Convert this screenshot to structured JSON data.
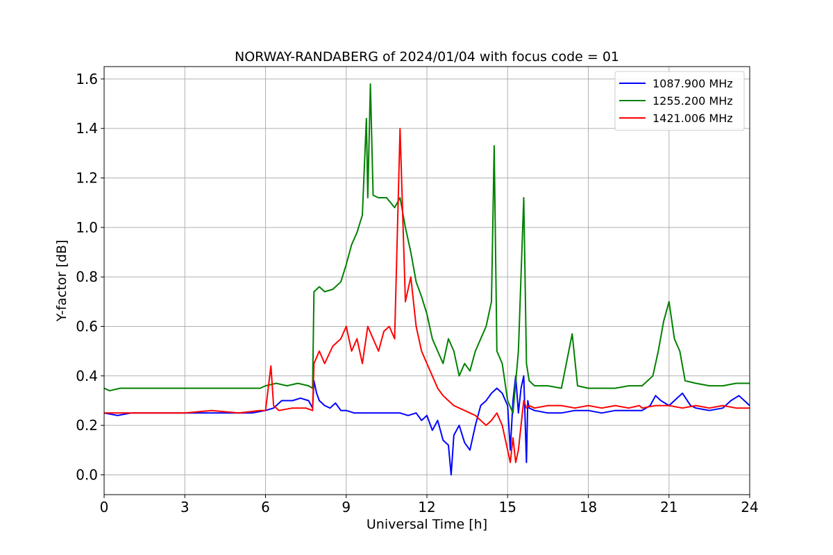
{
  "chart_data": {
    "type": "line",
    "title": "NORWAY-RANDABERG of 2024/01/04 with focus code = 01",
    "xlabel": "Universal Time [h]",
    "ylabel": "Y-factor [dB]",
    "xlim": [
      0,
      24
    ],
    "ylim": [
      -0.08,
      1.65
    ],
    "xticks": [
      0,
      3,
      6,
      9,
      12,
      15,
      18,
      21,
      24
    ],
    "yticks": [
      0.0,
      0.2,
      0.4,
      0.6,
      0.8,
      1.0,
      1.2,
      1.4,
      1.6
    ],
    "xtick_labels": [
      "0",
      "3",
      "6",
      "9",
      "12",
      "15",
      "18",
      "21",
      "24"
    ],
    "ytick_labels": [
      "0.0",
      "0.2",
      "0.4",
      "0.6",
      "0.8",
      "1.0",
      "1.2",
      "1.4",
      "1.6"
    ],
    "grid": true,
    "legend": "top-right",
    "series": [
      {
        "name": "1087.900 MHz",
        "color": "#0000ff",
        "x": [
          0,
          0.5,
          1,
          1.5,
          2,
          2.5,
          3,
          3.5,
          4,
          4.5,
          5,
          5.5,
          6,
          6.3,
          6.6,
          7,
          7.3,
          7.6,
          7.75,
          7.8,
          7.9,
          8,
          8.2,
          8.4,
          8.6,
          8.8,
          9,
          9.3,
          9.6,
          10,
          10.5,
          11,
          11.3,
          11.6,
          11.8,
          12,
          12.2,
          12.4,
          12.6,
          12.8,
          12.9,
          13,
          13.2,
          13.4,
          13.6,
          13.8,
          14,
          14.2,
          14.4,
          14.6,
          14.8,
          15,
          15.1,
          15.2,
          15.3,
          15.4,
          15.5,
          15.6,
          15.7,
          15.75,
          15.8,
          16,
          16.5,
          17,
          17.5,
          18,
          18.5,
          19,
          19.5,
          20,
          20.3,
          20.5,
          20.7,
          21,
          21.2,
          21.5,
          21.8,
          22,
          22.5,
          23,
          23.3,
          23.6,
          24
        ],
        "y": [
          0.25,
          0.24,
          0.25,
          0.25,
          0.25,
          0.25,
          0.25,
          0.25,
          0.25,
          0.25,
          0.25,
          0.25,
          0.26,
          0.27,
          0.3,
          0.3,
          0.31,
          0.3,
          0.27,
          0.38,
          0.33,
          0.3,
          0.28,
          0.27,
          0.29,
          0.26,
          0.26,
          0.25,
          0.25,
          0.25,
          0.25,
          0.25,
          0.24,
          0.25,
          0.22,
          0.24,
          0.18,
          0.22,
          0.14,
          0.12,
          0.0,
          0.16,
          0.2,
          0.13,
          0.1,
          0.2,
          0.28,
          0.3,
          0.33,
          0.35,
          0.33,
          0.28,
          0.1,
          0.3,
          0.4,
          0.25,
          0.35,
          0.4,
          0.05,
          0.3,
          0.27,
          0.26,
          0.25,
          0.25,
          0.26,
          0.26,
          0.25,
          0.26,
          0.26,
          0.26,
          0.28,
          0.32,
          0.3,
          0.28,
          0.3,
          0.33,
          0.28,
          0.27,
          0.26,
          0.27,
          0.3,
          0.32,
          0.28
        ]
      },
      {
        "name": "1255.200 MHz",
        "color": "#008000",
        "x": [
          0,
          0.2,
          0.6,
          1,
          2,
          3,
          4,
          5,
          5.8,
          6,
          6.4,
          6.8,
          7.2,
          7.6,
          7.75,
          7.8,
          8,
          8.2,
          8.5,
          8.8,
          9,
          9.2,
          9.4,
          9.6,
          9.75,
          9.8,
          9.9,
          10,
          10.2,
          10.5,
          10.8,
          11,
          11.2,
          11.4,
          11.6,
          11.8,
          12,
          12.2,
          12.4,
          12.6,
          12.8,
          13,
          13.2,
          13.4,
          13.6,
          13.8,
          14,
          14.2,
          14.4,
          14.5,
          14.6,
          14.8,
          15,
          15.2,
          15.4,
          15.6,
          15.7,
          15.8,
          16,
          16.5,
          17,
          17.4,
          17.6,
          18,
          18.5,
          19,
          19.5,
          20,
          20.4,
          20.6,
          20.8,
          21,
          21.2,
          21.4,
          21.6,
          22,
          22.5,
          23,
          23.5,
          24
        ],
        "y": [
          0.35,
          0.34,
          0.35,
          0.35,
          0.35,
          0.35,
          0.35,
          0.35,
          0.35,
          0.36,
          0.37,
          0.36,
          0.37,
          0.36,
          0.35,
          0.74,
          0.76,
          0.74,
          0.75,
          0.78,
          0.85,
          0.93,
          0.98,
          1.05,
          1.44,
          1.12,
          1.58,
          1.13,
          1.12,
          1.12,
          1.08,
          1.12,
          1.0,
          0.9,
          0.78,
          0.72,
          0.65,
          0.55,
          0.5,
          0.45,
          0.55,
          0.5,
          0.4,
          0.45,
          0.42,
          0.5,
          0.55,
          0.6,
          0.7,
          1.33,
          0.5,
          0.45,
          0.3,
          0.25,
          0.5,
          1.12,
          0.45,
          0.38,
          0.36,
          0.36,
          0.35,
          0.57,
          0.36,
          0.35,
          0.35,
          0.35,
          0.36,
          0.36,
          0.4,
          0.5,
          0.62,
          0.7,
          0.55,
          0.5,
          0.38,
          0.37,
          0.36,
          0.36,
          0.37,
          0.37
        ]
      },
      {
        "name": "1421.006 MHz",
        "color": "#ff0000",
        "x": [
          0,
          1,
          2,
          3,
          4,
          5,
          5.8,
          6,
          6.2,
          6.3,
          6.5,
          7,
          7.5,
          7.75,
          7.8,
          8,
          8.2,
          8.5,
          8.8,
          9,
          9.2,
          9.4,
          9.6,
          9.8,
          10,
          10.2,
          10.4,
          10.6,
          10.8,
          11,
          11.2,
          11.4,
          11.6,
          11.8,
          12,
          12.2,
          12.4,
          12.6,
          12.8,
          13,
          13.2,
          13.4,
          13.6,
          13.8,
          14,
          14.2,
          14.4,
          14.6,
          14.8,
          15,
          15.1,
          15.2,
          15.3,
          15.4,
          15.5,
          15.6,
          15.7,
          15.8,
          16,
          16.5,
          17,
          17.5,
          18,
          18.5,
          19,
          19.5,
          19.9,
          20,
          20.5,
          21,
          21.5,
          22,
          22.5,
          23,
          23.5,
          24
        ],
        "y": [
          0.25,
          0.25,
          0.25,
          0.25,
          0.26,
          0.25,
          0.26,
          0.26,
          0.44,
          0.28,
          0.26,
          0.27,
          0.27,
          0.26,
          0.45,
          0.5,
          0.45,
          0.52,
          0.55,
          0.6,
          0.5,
          0.55,
          0.45,
          0.6,
          0.55,
          0.5,
          0.58,
          0.6,
          0.55,
          1.4,
          0.7,
          0.8,
          0.6,
          0.5,
          0.45,
          0.4,
          0.35,
          0.32,
          0.3,
          0.28,
          0.27,
          0.26,
          0.25,
          0.24,
          0.22,
          0.2,
          0.22,
          0.25,
          0.2,
          0.1,
          0.05,
          0.15,
          0.05,
          0.1,
          0.2,
          0.3,
          0.27,
          0.28,
          0.27,
          0.28,
          0.28,
          0.27,
          0.28,
          0.27,
          0.28,
          0.27,
          0.28,
          0.27,
          0.28,
          0.28,
          0.27,
          0.28,
          0.27,
          0.28,
          0.27,
          0.27
        ]
      }
    ]
  }
}
